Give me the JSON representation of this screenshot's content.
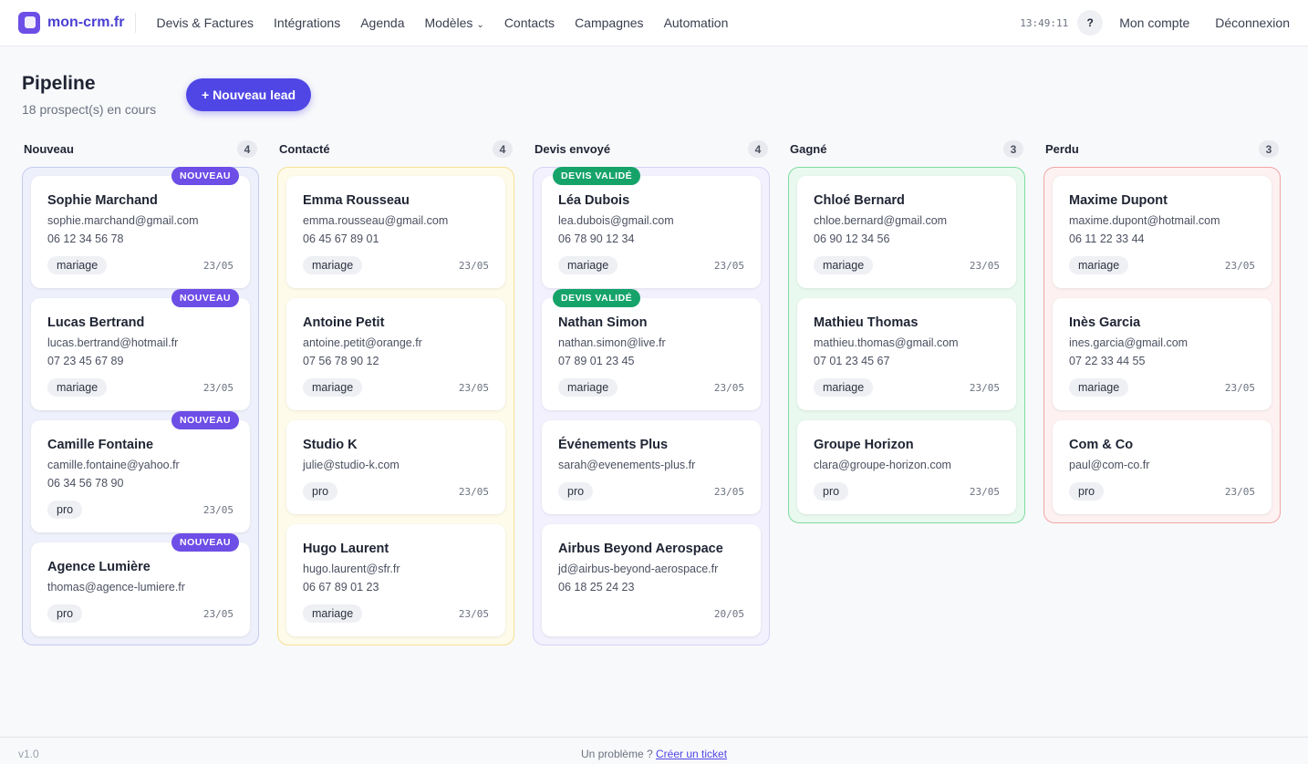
{
  "nav": {
    "brand": "mon-crm.fr",
    "links": [
      "Devis & Factures",
      "Intégrations",
      "Agenda",
      "Modèles",
      "Contacts",
      "Campagnes",
      "Automation"
    ],
    "time": "13:49:11",
    "help": "?",
    "account": "Mon compte",
    "logout": "Déconnexion"
  },
  "header": {
    "title": "Pipeline",
    "subtitle": "18 prospect(s) en cours",
    "button": "+ Nouveau lead"
  },
  "columns": [
    {
      "name": "Nouveau",
      "count": 4,
      "cards": [
        {
          "badge": "NOUVEAU",
          "name": "Sophie Marchand",
          "email": "sophie.marchand@gmail.com",
          "phone": "06 12 34 56 78",
          "tag": "mariage",
          "date": "23/05"
        },
        {
          "badge": "NOUVEAU",
          "name": "Lucas Bertrand",
          "email": "lucas.bertrand@hotmail.fr",
          "phone": "07 23 45 67 89",
          "tag": "mariage",
          "date": "23/05"
        },
        {
          "badge": "NOUVEAU",
          "name": "Camille Fontaine",
          "email": "camille.fontaine@yahoo.fr",
          "phone": "06 34 56 78 90",
          "tag": "pro",
          "date": "23/05"
        },
        {
          "badge": "NOUVEAU",
          "name": "Agence Lumière",
          "email": "thomas@agence-lumiere.fr",
          "tag": "pro",
          "date": "23/05"
        }
      ]
    },
    {
      "name": "Contacté",
      "count": 4,
      "cards": [
        {
          "name": "Emma Rousseau",
          "email": "emma.rousseau@gmail.com",
          "phone": "06 45 67 89 01",
          "tag": "mariage",
          "date": "23/05"
        },
        {
          "name": "Antoine Petit",
          "email": "antoine.petit@orange.fr",
          "phone": "07 56 78 90 12",
          "tag": "mariage",
          "date": "23/05"
        },
        {
          "name": "Studio K",
          "email": "julie@studio-k.com",
          "tag": "pro",
          "date": "23/05"
        },
        {
          "name": "Hugo Laurent",
          "email": "hugo.laurent@sfr.fr",
          "phone": "06 67 89 01 23",
          "tag": "mariage",
          "date": "23/05"
        }
      ]
    },
    {
      "name": "Devis envoyé",
      "count": 4,
      "cards": [
        {
          "badge": "DEVIS VALIDÉ",
          "name": "Léa Dubois",
          "email": "lea.dubois@gmail.com",
          "phone": "06 78 90 12 34",
          "tag": "mariage",
          "date": "23/05"
        },
        {
          "badge": "DEVIS VALIDÉ",
          "name": "Nathan Simon",
          "email": "nathan.simon@live.fr",
          "phone": "07 89 01 23 45",
          "tag": "mariage",
          "date": "23/05"
        },
        {
          "name": "Événements Plus",
          "email": "sarah@evenements-plus.fr",
          "tag": "pro",
          "date": "23/05"
        },
        {
          "name": "Airbus Beyond Aerospace",
          "email": "jd@airbus-beyond-aerospace.fr",
          "phone": "06 18 25 24 23",
          "date": "20/05"
        }
      ]
    },
    {
      "name": "Gagné",
      "count": 3,
      "cards": [
        {
          "name": "Chloé Bernard",
          "email": "chloe.bernard@gmail.com",
          "phone": "06 90 12 34 56",
          "tag": "mariage",
          "date": "23/05"
        },
        {
          "name": "Mathieu Thomas",
          "email": "mathieu.thomas@gmail.com",
          "phone": "07 01 23 45 67",
          "tag": "mariage",
          "date": "23/05"
        },
        {
          "name": "Groupe Horizon",
          "email": "clara@groupe-horizon.com",
          "tag": "pro",
          "date": "23/05"
        }
      ]
    },
    {
      "name": "Perdu",
      "count": 3,
      "cards": [
        {
          "name": "Maxime Dupont",
          "email": "maxime.dupont@hotmail.com",
          "phone": "06 11 22 33 44",
          "tag": "mariage",
          "date": "23/05"
        },
        {
          "name": "Inès Garcia",
          "email": "ines.garcia@gmail.com",
          "phone": "07 22 33 44 55",
          "tag": "mariage",
          "date": "23/05"
        },
        {
          "name": "Com & Co",
          "email": "paul@com-co.fr",
          "tag": "pro",
          "date": "23/05"
        }
      ]
    }
  ],
  "footer": {
    "version": "v1.0",
    "text": "Un problème ?",
    "link": "Créer un ticket"
  }
}
